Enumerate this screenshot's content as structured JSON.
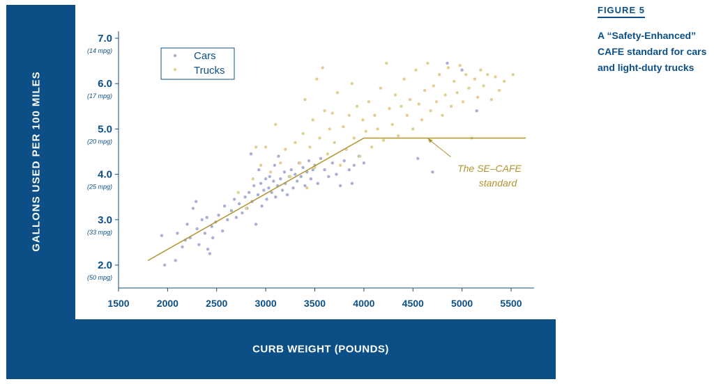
{
  "figure_label": "FIGURE 5",
  "caption": "A “Safety-Enhanced” CAFE standard for cars and light-duty trucks",
  "colors": {
    "frame": "#0b4f86",
    "cars": "#a9b0d6",
    "trucks": "#e2cf94",
    "standard_line": "#b0952e",
    "annotation": "#b0952e"
  },
  "chart_data": {
    "type": "scatter",
    "xlabel": "CURB WEIGHT (POUNDS)",
    "ylabel": "GALLONS USED PER 100 MILES",
    "xlim": [
      1500,
      5700
    ],
    "ylim": [
      1.5,
      7.2
    ],
    "x_ticks": [
      1500,
      2000,
      2500,
      3000,
      3500,
      4000,
      4500,
      5000,
      5500
    ],
    "y_ticks": [
      {
        "value": 2.0,
        "label": "2.0",
        "sub": "(50 mpg)"
      },
      {
        "value": 3.0,
        "label": "3.0",
        "sub": "(33 mpg)"
      },
      {
        "value": 4.0,
        "label": "4.0",
        "sub": "(25 mpg)"
      },
      {
        "value": 5.0,
        "label": "5.0",
        "sub": "(20 mpg)"
      },
      {
        "value": 6.0,
        "label": "6.0",
        "sub": "(17 mpg)"
      },
      {
        "value": 7.0,
        "label": "7.0",
        "sub": "(14 mpg)"
      }
    ],
    "legend": {
      "position": "top-left",
      "entries": [
        "Cars",
        "Trucks"
      ]
    },
    "series": [
      {
        "name": "Cars",
        "points": [
          [
            1940,
            2.65
          ],
          [
            1970,
            2.0
          ],
          [
            2080,
            2.1
          ],
          [
            2100,
            2.7
          ],
          [
            2150,
            2.4
          ],
          [
            2180,
            2.55
          ],
          [
            2200,
            2.9
          ],
          [
            2230,
            2.6
          ],
          [
            2260,
            3.25
          ],
          [
            2290,
            3.4
          ],
          [
            2300,
            2.8
          ],
          [
            2320,
            2.45
          ],
          [
            2350,
            3.0
          ],
          [
            2380,
            2.7
          ],
          [
            2400,
            3.05
          ],
          [
            2410,
            2.35
          ],
          [
            2430,
            2.25
          ],
          [
            2450,
            2.85
          ],
          [
            2460,
            2.6
          ],
          [
            2490,
            2.95
          ],
          [
            2520,
            3.1
          ],
          [
            2560,
            2.75
          ],
          [
            2580,
            3.3
          ],
          [
            2610,
            3.0
          ],
          [
            2650,
            3.2
          ],
          [
            2680,
            3.45
          ],
          [
            2700,
            3.05
          ],
          [
            2730,
            3.35
          ],
          [
            2760,
            3.15
          ],
          [
            2790,
            3.5
          ],
          [
            2810,
            3.25
          ],
          [
            2830,
            3.6
          ],
          [
            2850,
            4.45
          ],
          [
            2860,
            3.4
          ],
          [
            2880,
            3.75
          ],
          [
            2900,
            2.9
          ],
          [
            2920,
            3.55
          ],
          [
            2930,
            4.1
          ],
          [
            2950,
            3.8
          ],
          [
            2960,
            3.3
          ],
          [
            2980,
            3.65
          ],
          [
            3000,
            3.9
          ],
          [
            3010,
            3.45
          ],
          [
            3030,
            3.7
          ],
          [
            3040,
            3.95
          ],
          [
            3060,
            3.6
          ],
          [
            3080,
            3.85
          ],
          [
            3090,
            4.2
          ],
          [
            3100,
            3.5
          ],
          [
            3120,
            3.75
          ],
          [
            3130,
            4.4
          ],
          [
            3150,
            3.9
          ],
          [
            3170,
            3.65
          ],
          [
            3190,
            4.05
          ],
          [
            3200,
            3.8
          ],
          [
            3220,
            3.55
          ],
          [
            3240,
            3.95
          ],
          [
            3260,
            4.1
          ],
          [
            3280,
            3.7
          ],
          [
            3300,
            4.0
          ],
          [
            3320,
            3.85
          ],
          [
            3340,
            4.25
          ],
          [
            3360,
            3.95
          ],
          [
            3380,
            4.15
          ],
          [
            3400,
            3.75
          ],
          [
            3420,
            4.05
          ],
          [
            3440,
            4.3
          ],
          [
            3460,
            3.9
          ],
          [
            3480,
            4.1
          ],
          [
            3500,
            4.2
          ],
          [
            3530,
            3.8
          ],
          [
            3560,
            4.35
          ],
          [
            3600,
            4.1
          ],
          [
            3640,
            3.95
          ],
          [
            3680,
            4.25
          ],
          [
            3720,
            4.0
          ],
          [
            3760,
            3.75
          ],
          [
            3800,
            4.3
          ],
          [
            3850,
            4.1
          ],
          [
            3880,
            3.8
          ],
          [
            3900,
            4.2
          ],
          [
            3950,
            4.4
          ],
          [
            4000,
            4.25
          ],
          [
            4550,
            4.35
          ],
          [
            4700,
            4.05
          ],
          [
            4850,
            6.45
          ],
          [
            5000,
            6.3
          ],
          [
            5150,
            5.4
          ]
        ]
      },
      {
        "name": "Trucks",
        "points": [
          [
            2720,
            3.6
          ],
          [
            2800,
            3.25
          ],
          [
            2870,
            3.9
          ],
          [
            2900,
            4.6
          ],
          [
            2950,
            4.2
          ],
          [
            3000,
            4.6
          ],
          [
            3050,
            4.05
          ],
          [
            3100,
            5.1
          ],
          [
            3150,
            4.25
          ],
          [
            3200,
            4.55
          ],
          [
            3250,
            3.95
          ],
          [
            3300,
            4.7
          ],
          [
            3350,
            4.25
          ],
          [
            3380,
            4.9
          ],
          [
            3400,
            5.65
          ],
          [
            3420,
            3.7
          ],
          [
            3450,
            4.6
          ],
          [
            3480,
            5.2
          ],
          [
            3500,
            4.15
          ],
          [
            3520,
            6.1
          ],
          [
            3550,
            4.8
          ],
          [
            3580,
            6.35
          ],
          [
            3600,
            5.4
          ],
          [
            3630,
            4.45
          ],
          [
            3650,
            5.0
          ],
          [
            3680,
            5.35
          ],
          [
            3700,
            4.7
          ],
          [
            3730,
            5.8
          ],
          [
            3760,
            4.2
          ],
          [
            3790,
            5.05
          ],
          [
            3820,
            4.55
          ],
          [
            3850,
            5.3
          ],
          [
            3880,
            6.0
          ],
          [
            3900,
            4.8
          ],
          [
            3930,
            5.5
          ],
          [
            3960,
            4.4
          ],
          [
            3990,
            5.2
          ],
          [
            4020,
            4.95
          ],
          [
            4050,
            5.6
          ],
          [
            4080,
            4.6
          ],
          [
            4110,
            5.3
          ],
          [
            4140,
            5.0
          ],
          [
            4170,
            5.9
          ],
          [
            4200,
            4.75
          ],
          [
            4230,
            6.45
          ],
          [
            4260,
            5.45
          ],
          [
            4290,
            5.1
          ],
          [
            4320,
            5.75
          ],
          [
            4350,
            4.85
          ],
          [
            4380,
            5.5
          ],
          [
            4410,
            6.1
          ],
          [
            4440,
            5.3
          ],
          [
            4470,
            5.65
          ],
          [
            4500,
            5.0
          ],
          [
            4530,
            6.3
          ],
          [
            4560,
            5.55
          ],
          [
            4590,
            5.2
          ],
          [
            4620,
            5.85
          ],
          [
            4650,
            6.45
          ],
          [
            4680,
            5.4
          ],
          [
            4710,
            5.95
          ],
          [
            4740,
            5.6
          ],
          [
            4770,
            6.2
          ],
          [
            4800,
            5.3
          ],
          [
            4830,
            5.75
          ],
          [
            4860,
            6.35
          ],
          [
            4890,
            5.5
          ],
          [
            4920,
            6.05
          ],
          [
            4950,
            5.8
          ],
          [
            4980,
            6.4
          ],
          [
            5010,
            5.6
          ],
          [
            5040,
            6.2
          ],
          [
            5070,
            5.9
          ],
          [
            5100,
            4.8
          ],
          [
            5130,
            6.1
          ],
          [
            5160,
            5.7
          ],
          [
            5190,
            6.3
          ],
          [
            5220,
            5.95
          ],
          [
            5260,
            6.2
          ],
          [
            5300,
            5.65
          ],
          [
            5340,
            6.15
          ],
          [
            5380,
            5.85
          ],
          [
            5430,
            6.05
          ],
          [
            5520,
            6.2
          ]
        ]
      }
    ],
    "standard_line": {
      "points": [
        [
          1800,
          2.1
        ],
        [
          4000,
          4.8
        ],
        [
          5650,
          4.8
        ]
      ]
    },
    "annotation": {
      "line1": "The SE–CAFE",
      "line2": "standard",
      "target": [
        4650,
        4.8
      ]
    }
  }
}
